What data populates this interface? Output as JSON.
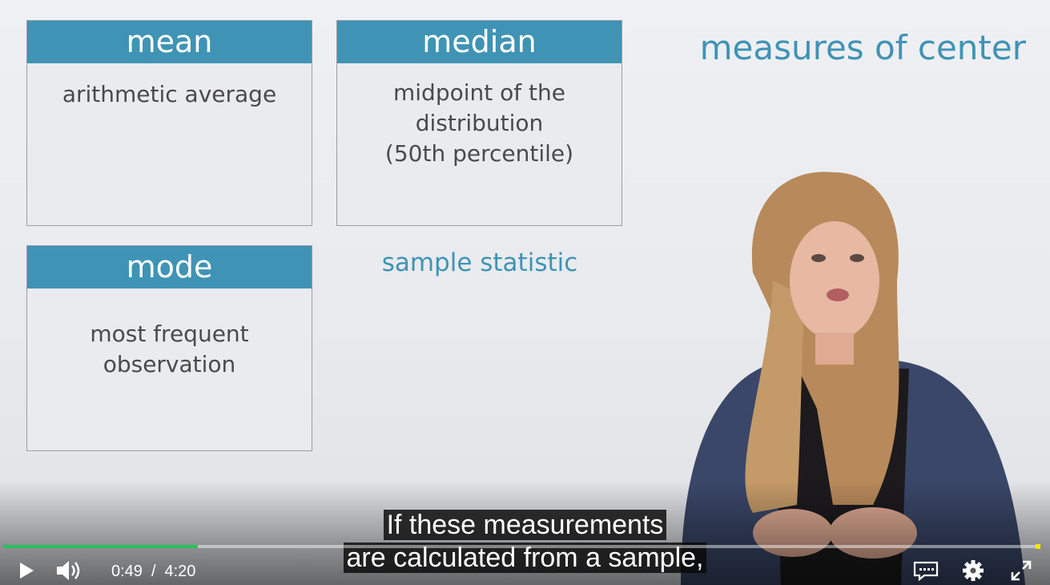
{
  "slide": {
    "title": "measures of center",
    "cards": [
      {
        "heading": "mean",
        "body": "arithmetic average"
      },
      {
        "heading": "median",
        "body": "midpoint of the\ndistribution\n(50th percentile)"
      },
      {
        "heading": "mode",
        "body": "most frequent\nobservation"
      }
    ],
    "sample_statistic": "sample statistic"
  },
  "captions": {
    "line1": "If these measurements",
    "line2": "are calculated from a sample,"
  },
  "player": {
    "current_time": "0:49",
    "separator": "/",
    "duration": "4:20",
    "progress_fraction": 0.188,
    "accent_color": "#27c05a",
    "icons": [
      "play-icon",
      "volume-icon",
      "captions-icon",
      "settings-icon",
      "fullscreen-icon"
    ]
  }
}
